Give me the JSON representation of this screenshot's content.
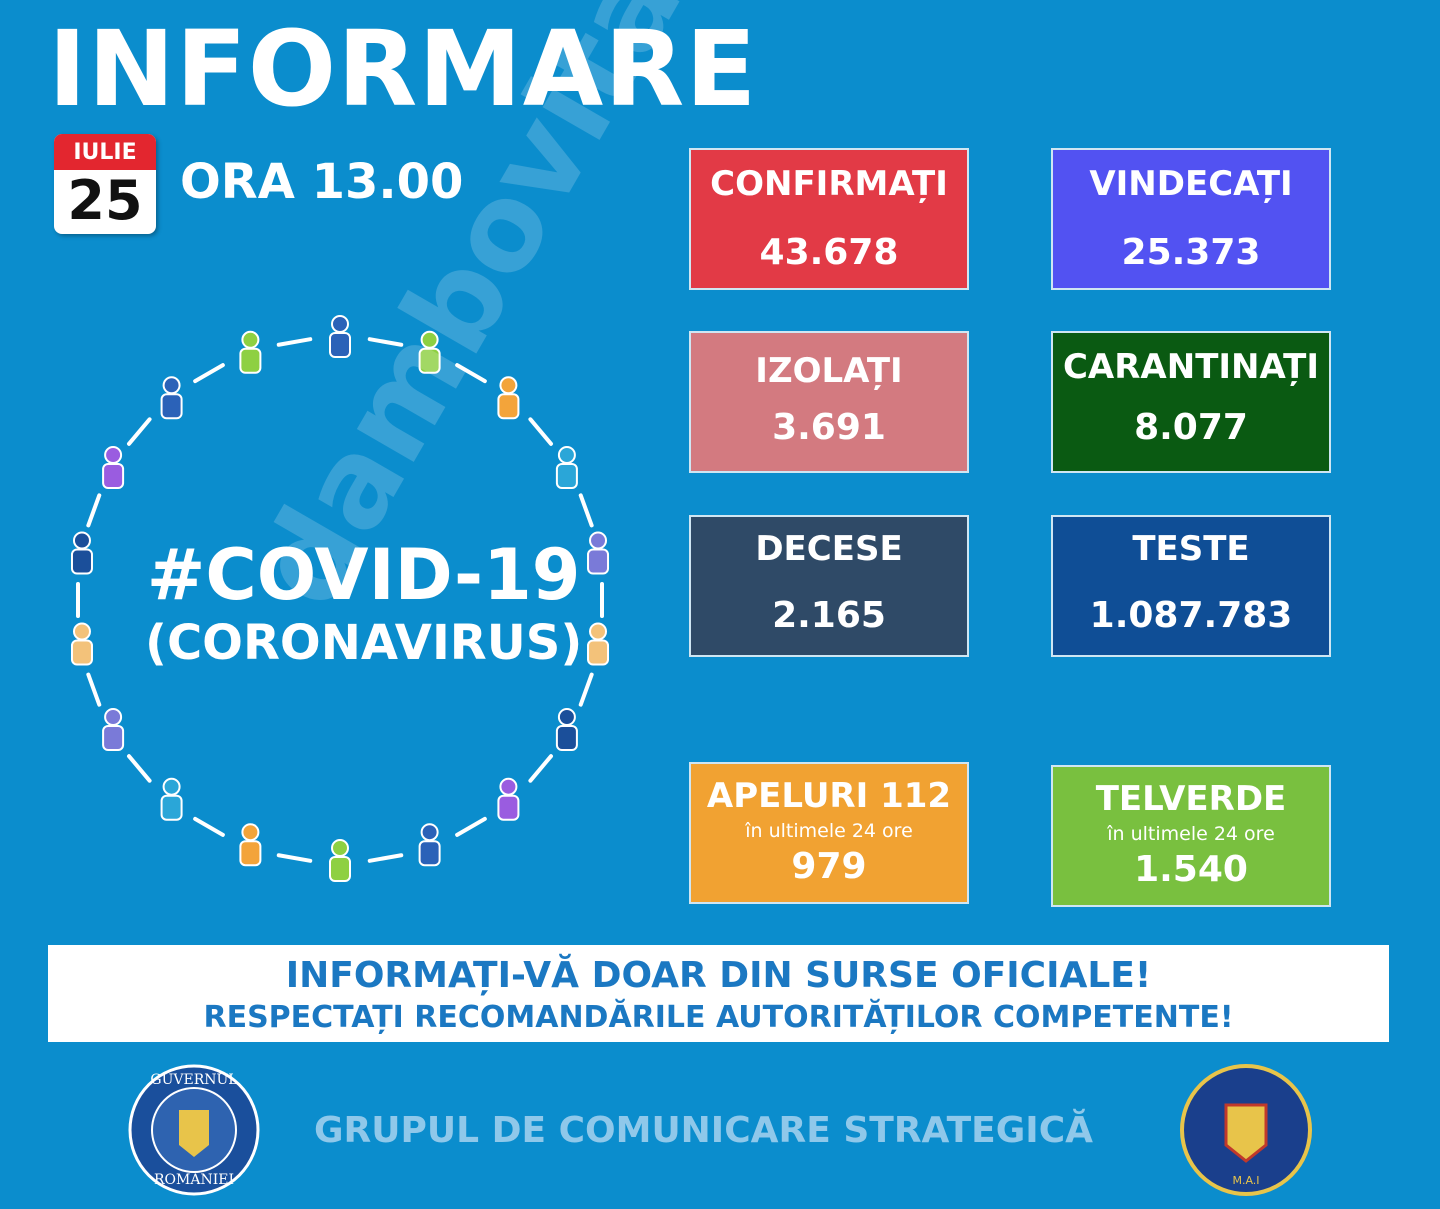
{
  "header": {
    "title": "INFORMARE",
    "month": "IULIE",
    "day": "25",
    "time": "ORA 13.00"
  },
  "hashtag": {
    "title": "#COVID-19",
    "subtitle": "(CORONAVIRUS)"
  },
  "stats": [
    {
      "label": "CONFIRMAȚI",
      "value": "43.678"
    },
    {
      "label": "VINDECAȚI",
      "value": "25.373"
    },
    {
      "label": "IZOLAȚI",
      "value": "3.691"
    },
    {
      "label": "CARANTINAȚI",
      "value": "8.077"
    },
    {
      "label": "DECESE",
      "value": "2.165"
    },
    {
      "label": "TESTE",
      "value": "1.087.783"
    }
  ],
  "calls": [
    {
      "label": "APELURI 112",
      "note": "în ultimele 24 ore",
      "value": "979"
    },
    {
      "label": "TELVERDE",
      "note": "în ultimele 24 ore",
      "value": "1.540"
    }
  ],
  "banner": {
    "line1": "INFORMAȚI-VĂ DOAR DIN SURSE OFICIALE!",
    "line2": "RESPECTAȚI RECOMANDĂRILE AUTORITĂȚILOR COMPETENTE!"
  },
  "footer": {
    "text": "GRUPUL DE COMUNICARE STRATEGICĂ",
    "left_logo_top": "GUVERNUL",
    "left_logo_bottom": "ROMÂNIEI",
    "right_logo": "M.A.I"
  },
  "watermark": "dambovitanul.com"
}
